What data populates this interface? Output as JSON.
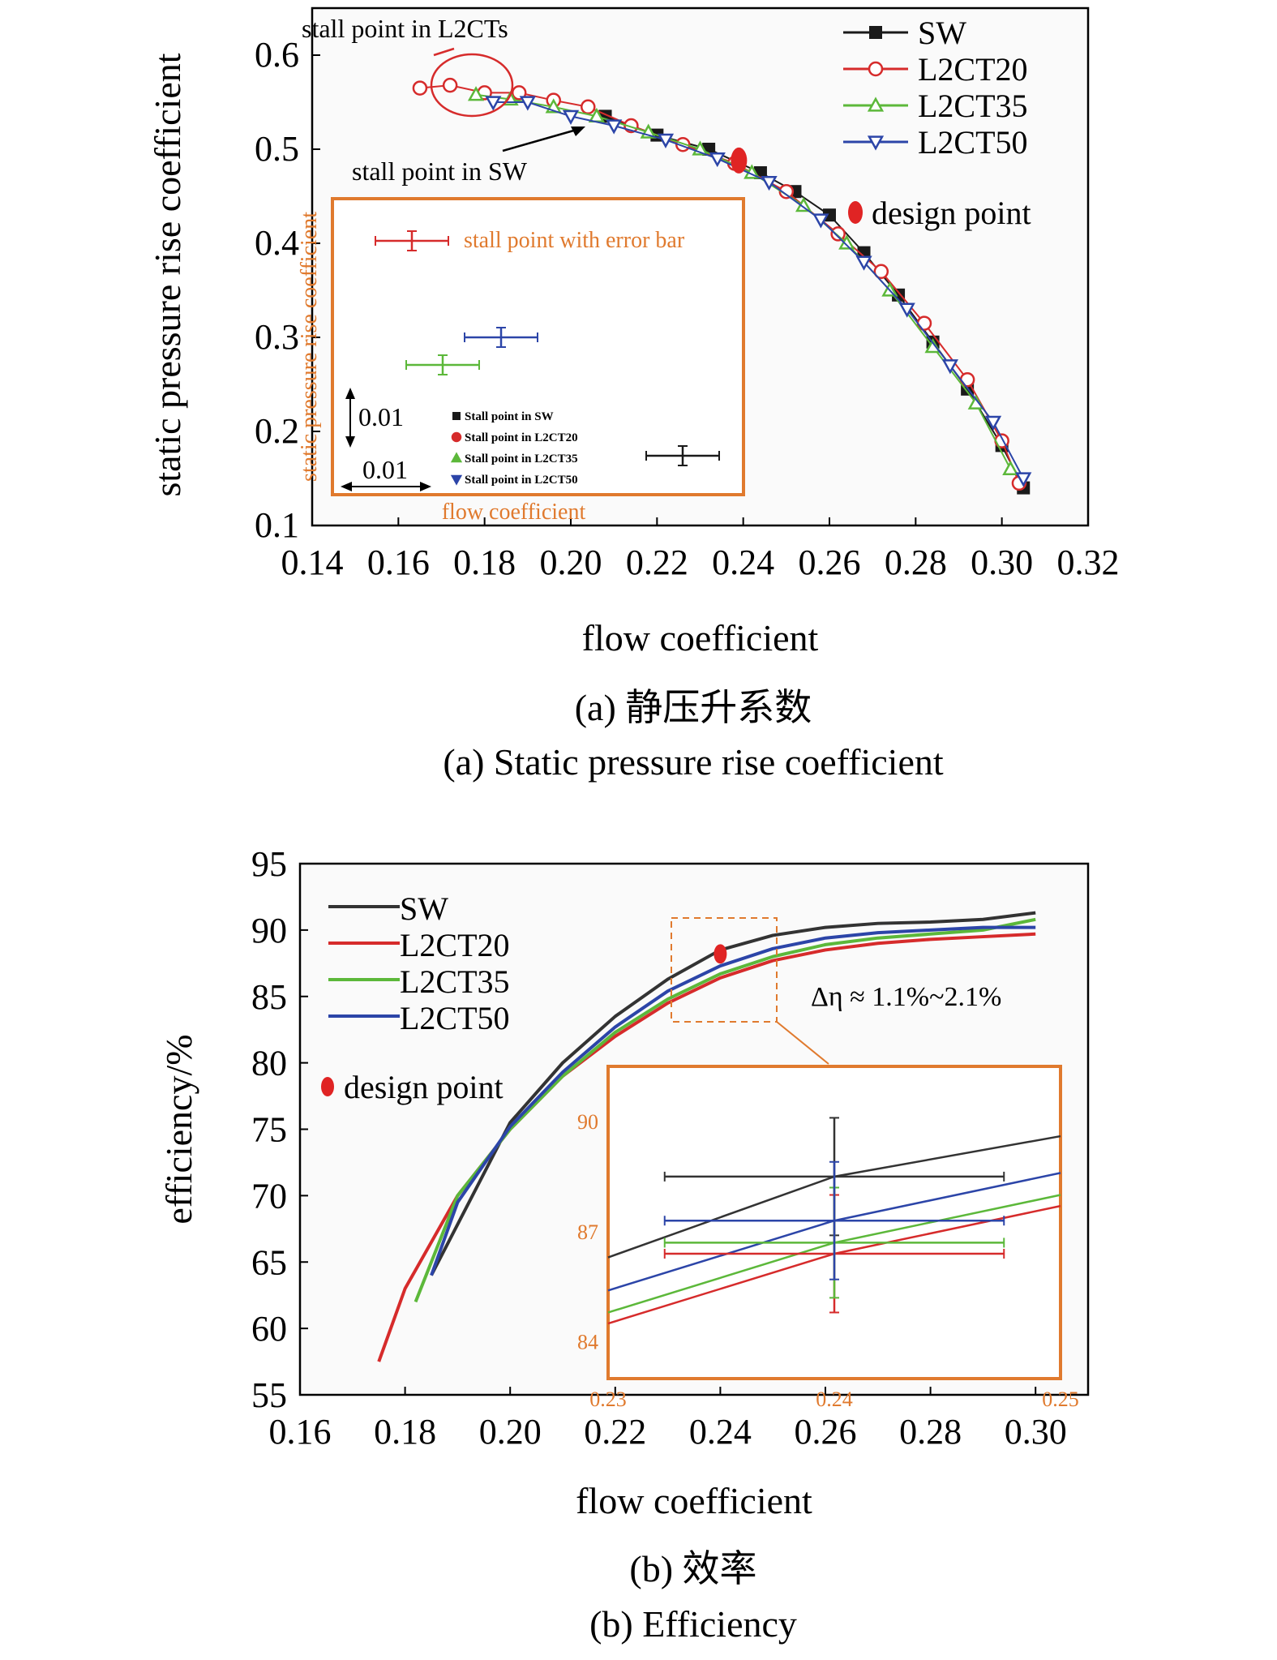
{
  "chart_data": [
    {
      "type": "scatter",
      "xlabel": "flow coefficient",
      "ylabel": "static pressure rise coefficient",
      "xlim": [
        0.14,
        0.32
      ],
      "ylim": [
        0.1,
        0.65
      ],
      "xticks": [
        "0.14",
        "0.16",
        "0.18",
        "0.20",
        "0.22",
        "0.24",
        "0.26",
        "0.28",
        "0.30",
        "0.32"
      ],
      "yticks": [
        "0.1",
        "0.2",
        "0.3",
        "0.4",
        "0.5",
        "0.6"
      ],
      "caption_cn": "(a) 静压升系数",
      "caption_en": "(a) Static pressure rise coefficient",
      "series": [
        {
          "name": "SW",
          "color": "#1a1a1a",
          "marker": "square",
          "x": [
            0.208,
            0.22,
            0.232,
            0.244,
            0.252,
            0.26,
            0.268,
            0.276,
            0.284,
            0.292,
            0.3,
            0.305
          ],
          "y": [
            0.535,
            0.515,
            0.5,
            0.475,
            0.455,
            0.43,
            0.39,
            0.345,
            0.295,
            0.245,
            0.185,
            0.14
          ]
        },
        {
          "name": "L2CT20",
          "color": "#d62b2b",
          "marker": "circle",
          "x": [
            0.165,
            0.172,
            0.18,
            0.188,
            0.196,
            0.204,
            0.214,
            0.226,
            0.238,
            0.25,
            0.262,
            0.272,
            0.282,
            0.292,
            0.3,
            0.304
          ],
          "y": [
            0.565,
            0.568,
            0.56,
            0.56,
            0.552,
            0.545,
            0.525,
            0.505,
            0.485,
            0.455,
            0.41,
            0.37,
            0.315,
            0.255,
            0.19,
            0.145
          ]
        },
        {
          "name": "L2CT35",
          "color": "#5cb83a",
          "marker": "triangle-up",
          "x": [
            0.178,
            0.186,
            0.196,
            0.206,
            0.218,
            0.23,
            0.242,
            0.254,
            0.264,
            0.274,
            0.284,
            0.294,
            0.302
          ],
          "y": [
            0.558,
            0.553,
            0.545,
            0.535,
            0.518,
            0.5,
            0.475,
            0.44,
            0.4,
            0.35,
            0.29,
            0.23,
            0.16
          ]
        },
        {
          "name": "L2CT50",
          "color": "#2c45a8",
          "marker": "triangle-down",
          "x": [
            0.182,
            0.19,
            0.2,
            0.21,
            0.222,
            0.234,
            0.246,
            0.258,
            0.268,
            0.278,
            0.288,
            0.298,
            0.305
          ],
          "y": [
            0.55,
            0.55,
            0.535,
            0.525,
            0.51,
            0.49,
            0.465,
            0.425,
            0.38,
            0.33,
            0.27,
            0.21,
            0.15
          ]
        }
      ],
      "design_point": {
        "label": "design point",
        "x": 0.239,
        "y": 0.488,
        "color": "#e02424"
      },
      "annotations": {
        "stall_l2ct": "stall point in L2CTs",
        "stall_sw": "stall point in SW"
      },
      "inset": {
        "ylabel": "static pressure rise coefficient",
        "xlabel": "flow coefficient",
        "title": "stall point with error bar",
        "scale_y": "0.01",
        "scale_x": "0.01",
        "legend": [
          "Stall point in SW",
          "Stall point in L2CT20",
          "Stall point in L2CT35",
          "Stall point in L2CT50"
        ],
        "points": [
          {
            "name": "SW",
            "color": "#1a1a1a"
          },
          {
            "name": "L2CT20",
            "color": "#d62b2b"
          },
          {
            "name": "L2CT35",
            "color": "#5cb83a"
          },
          {
            "name": "L2CT50",
            "color": "#2c45a8"
          }
        ]
      }
    },
    {
      "type": "line",
      "xlabel": "flow coefficient",
      "ylabel": "efficiency/%",
      "xlim": [
        0.16,
        0.31
      ],
      "ylim": [
        55,
        95
      ],
      "xticks": [
        "0.16",
        "0.18",
        "0.20",
        "0.22",
        "0.24",
        "0.26",
        "0.28",
        "0.30"
      ],
      "yticks": [
        "55",
        "60",
        "65",
        "70",
        "75",
        "80",
        "85",
        "90",
        "95"
      ],
      "caption_cn": "(b) 效率",
      "caption_en": "(b) Efficiency",
      "series": [
        {
          "name": "SW",
          "color": "#333333",
          "x": [
            0.185,
            0.2,
            0.21,
            0.22,
            0.23,
            0.24,
            0.25,
            0.26,
            0.27,
            0.28,
            0.29,
            0.3
          ],
          "y": [
            64,
            75.5,
            80,
            83.5,
            86.3,
            88.5,
            89.6,
            90.2,
            90.5,
            90.6,
            90.8,
            91.3
          ]
        },
        {
          "name": "L2CT20",
          "color": "#d62b2b",
          "x": [
            0.175,
            0.18,
            0.19,
            0.2,
            0.21,
            0.22,
            0.23,
            0.24,
            0.25,
            0.26,
            0.27,
            0.28,
            0.29,
            0.3
          ],
          "y": [
            57.5,
            63,
            70,
            75,
            79,
            82,
            84.5,
            86.4,
            87.7,
            88.5,
            89,
            89.3,
            89.5,
            89.7
          ]
        },
        {
          "name": "L2CT35",
          "color": "#5cb83a",
          "x": [
            0.182,
            0.19,
            0.2,
            0.21,
            0.22,
            0.23,
            0.24,
            0.25,
            0.26,
            0.27,
            0.28,
            0.29,
            0.3
          ],
          "y": [
            62,
            70,
            75,
            79,
            82.3,
            84.8,
            86.7,
            88,
            88.9,
            89.4,
            89.7,
            90,
            90.8
          ]
        },
        {
          "name": "L2CT50",
          "color": "#2c45a8",
          "x": [
            0.185,
            0.19,
            0.2,
            0.21,
            0.22,
            0.23,
            0.24,
            0.25,
            0.26,
            0.27,
            0.28,
            0.29,
            0.3
          ],
          "y": [
            64,
            69.5,
            75.2,
            79.3,
            82.7,
            85.4,
            87.3,
            88.6,
            89.4,
            89.8,
            90,
            90.2,
            90.2
          ]
        }
      ],
      "design_point": {
        "label": "design point",
        "x": 0.24,
        "y": 88.2,
        "color": "#e02424"
      },
      "annotation": "Δη ≈ 1.1%~2.1%",
      "inset": {
        "xlim": [
          0.23,
          0.25
        ],
        "ylim": [
          83,
          91.5
        ],
        "xticks": [
          "0.23",
          "0.24",
          "0.25"
        ],
        "yticks": [
          "84",
          "87",
          "90"
        ],
        "errorbars": [
          {
            "name": "SW",
            "color": "#333333",
            "x": 0.24,
            "y": 88.5,
            "xerr": 0.0075,
            "yerr": 1.6
          },
          {
            "name": "L2CT20",
            "color": "#d62b2b",
            "x": 0.24,
            "y": 86.4,
            "xerr": 0.0075,
            "yerr": 1.6
          },
          {
            "name": "L2CT35",
            "color": "#5cb83a",
            "x": 0.24,
            "y": 86.7,
            "xerr": 0.0075,
            "yerr": 1.5
          },
          {
            "name": "L2CT50",
            "color": "#2c45a8",
            "x": 0.24,
            "y": 87.3,
            "xerr": 0.0075,
            "yerr": 1.6
          }
        ]
      }
    }
  ]
}
